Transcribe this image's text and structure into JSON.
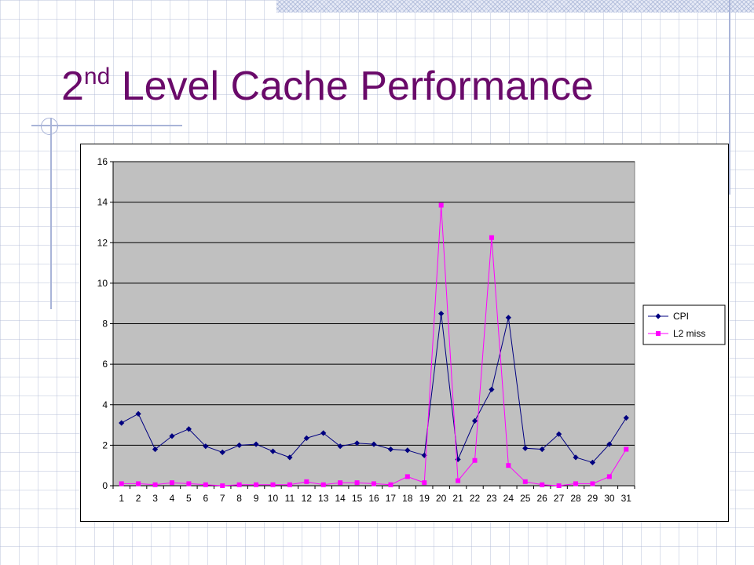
{
  "slide": {
    "title_main": "2",
    "title_sup": "nd",
    "title_rest": " Level Cache Performance"
  },
  "colors": {
    "title": "#6a0a6a",
    "plot_background": "#c0c0c0",
    "cpi_series": "#000080",
    "l2_series": "#ff00ff",
    "decoration": "#a9b4d8"
  },
  "chart_data": {
    "type": "line",
    "x": [
      1,
      2,
      3,
      4,
      5,
      6,
      7,
      8,
      9,
      10,
      11,
      12,
      13,
      14,
      15,
      16,
      17,
      18,
      19,
      20,
      21,
      22,
      23,
      24,
      25,
      26,
      27,
      28,
      29,
      30,
      31
    ],
    "ylim": [
      0,
      16
    ],
    "yticks": [
      "0",
      "2",
      "4",
      "6",
      "8",
      "10",
      "12",
      "14",
      "16"
    ],
    "xticks": [
      "1",
      "2",
      "3",
      "4",
      "5",
      "6",
      "7",
      "8",
      "9",
      "10",
      "11",
      "12",
      "13",
      "14",
      "15",
      "16",
      "17",
      "18",
      "19",
      "20",
      "21",
      "22",
      "23",
      "24",
      "25",
      "26",
      "27",
      "28",
      "29",
      "30",
      "31"
    ],
    "grid": true,
    "legend_position": "right",
    "series": [
      {
        "name": "CPI",
        "marker": "diamond",
        "values": [
          3.1,
          3.55,
          1.8,
          2.45,
          2.8,
          1.95,
          1.65,
          2.0,
          2.05,
          1.7,
          1.4,
          2.35,
          2.6,
          1.95,
          2.1,
          2.05,
          1.8,
          1.75,
          1.5,
          8.5,
          1.3,
          3.2,
          4.75,
          8.3,
          1.85,
          1.8,
          2.55,
          1.4,
          1.15,
          2.05,
          3.35
        ]
      },
      {
        "name": "L2 miss",
        "marker": "square",
        "values": [
          0.1,
          0.1,
          0.05,
          0.15,
          0.1,
          0.05,
          0.0,
          0.05,
          0.05,
          0.05,
          0.05,
          0.2,
          0.05,
          0.15,
          0.15,
          0.1,
          0.05,
          0.45,
          0.15,
          13.85,
          0.25,
          1.25,
          12.25,
          1.0,
          0.2,
          0.05,
          0.0,
          0.1,
          0.1,
          0.45,
          1.8
        ]
      }
    ]
  }
}
